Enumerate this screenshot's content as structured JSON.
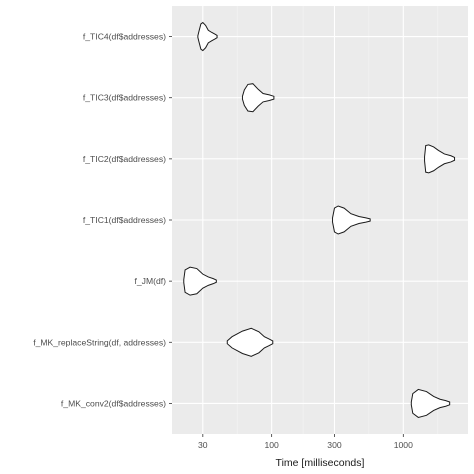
{
  "chart_data": {
    "type": "violin",
    "title": "",
    "xlabel": "Time [milliseconds]",
    "ylabel": "",
    "x_scale": "log10",
    "xlim": [
      17.5,
      3100
    ],
    "x_ticks": [
      30,
      100,
      300,
      1000
    ],
    "x_tick_labels": [
      "30",
      "100",
      "300",
      "1000"
    ],
    "grid": true,
    "legend": "none",
    "colors": {
      "panel_background": "#ebebeb",
      "grid_major": "#ffffff",
      "grid_minor": "#f5f5f5",
      "violin_fill": "#ffffff",
      "violin_outline": "#1a1a1a"
    },
    "categories": [
      "f_TIC4(df$addresses)",
      "f_TIC3(df$addresses)",
      "f_TIC2(df$addresses)",
      "f_TIC1(df$addresses)",
      "f_JM(df)",
      "f_MK_replaceString(df, addresses)",
      "f_MK_conv2(df$addresses)"
    ],
    "series": [
      {
        "category": "f_TIC4(df$addresses)",
        "distribution": [
          [
            27.5,
            0.05
          ],
          [
            28,
            0.35
          ],
          [
            29,
            0.9
          ],
          [
            30,
            1.0
          ],
          [
            31.5,
            0.8
          ],
          [
            33,
            0.45
          ],
          [
            35,
            0.3
          ],
          [
            37,
            0.18
          ],
          [
            38.5,
            0.08
          ]
        ]
      },
      {
        "category": "f_TIC3(df$addresses)",
        "distribution": [
          [
            60,
            0.1
          ],
          [
            62,
            0.55
          ],
          [
            66,
            0.95
          ],
          [
            72,
            1.0
          ],
          [
            79,
            0.6
          ],
          [
            86,
            0.3
          ],
          [
            96,
            0.2
          ],
          [
            104,
            0.1
          ]
        ]
      },
      {
        "category": "f_TIC2(df$addresses)",
        "distribution": [
          [
            1450,
            0.15
          ],
          [
            1480,
            0.95
          ],
          [
            1560,
            1.0
          ],
          [
            1700,
            0.85
          ],
          [
            1850,
            0.6
          ],
          [
            2050,
            0.35
          ],
          [
            2300,
            0.22
          ],
          [
            2450,
            0.1
          ]
        ]
      },
      {
        "category": "f_TIC1(df$addresses)",
        "distribution": [
          [
            290,
            0.15
          ],
          [
            300,
            0.85
          ],
          [
            320,
            1.0
          ],
          [
            355,
            0.85
          ],
          [
            400,
            0.45
          ],
          [
            460,
            0.25
          ],
          [
            520,
            0.15
          ],
          [
            560,
            0.08
          ]
        ]
      },
      {
        "category": "f_JM(df)",
        "distribution": [
          [
            21.5,
            0.1
          ],
          [
            22,
            0.8
          ],
          [
            24,
            1.0
          ],
          [
            27,
            0.9
          ],
          [
            30,
            0.5
          ],
          [
            33,
            0.3
          ],
          [
            36,
            0.18
          ],
          [
            38,
            0.08
          ]
        ]
      },
      {
        "category": "f_MK_replaceString(df, addresses)",
        "distribution": [
          [
            46,
            0.1
          ],
          [
            50,
            0.4
          ],
          [
            60,
            0.8
          ],
          [
            70,
            1.0
          ],
          [
            80,
            0.75
          ],
          [
            88,
            0.4
          ],
          [
            95,
            0.25
          ],
          [
            102,
            0.1
          ]
        ]
      },
      {
        "category": "f_MK_conv2(df$addresses)",
        "distribution": [
          [
            1150,
            0.1
          ],
          [
            1180,
            0.7
          ],
          [
            1300,
            1.0
          ],
          [
            1500,
            0.85
          ],
          [
            1700,
            0.5
          ],
          [
            1900,
            0.3
          ],
          [
            2100,
            0.2
          ],
          [
            2250,
            0.1
          ]
        ]
      }
    ]
  }
}
